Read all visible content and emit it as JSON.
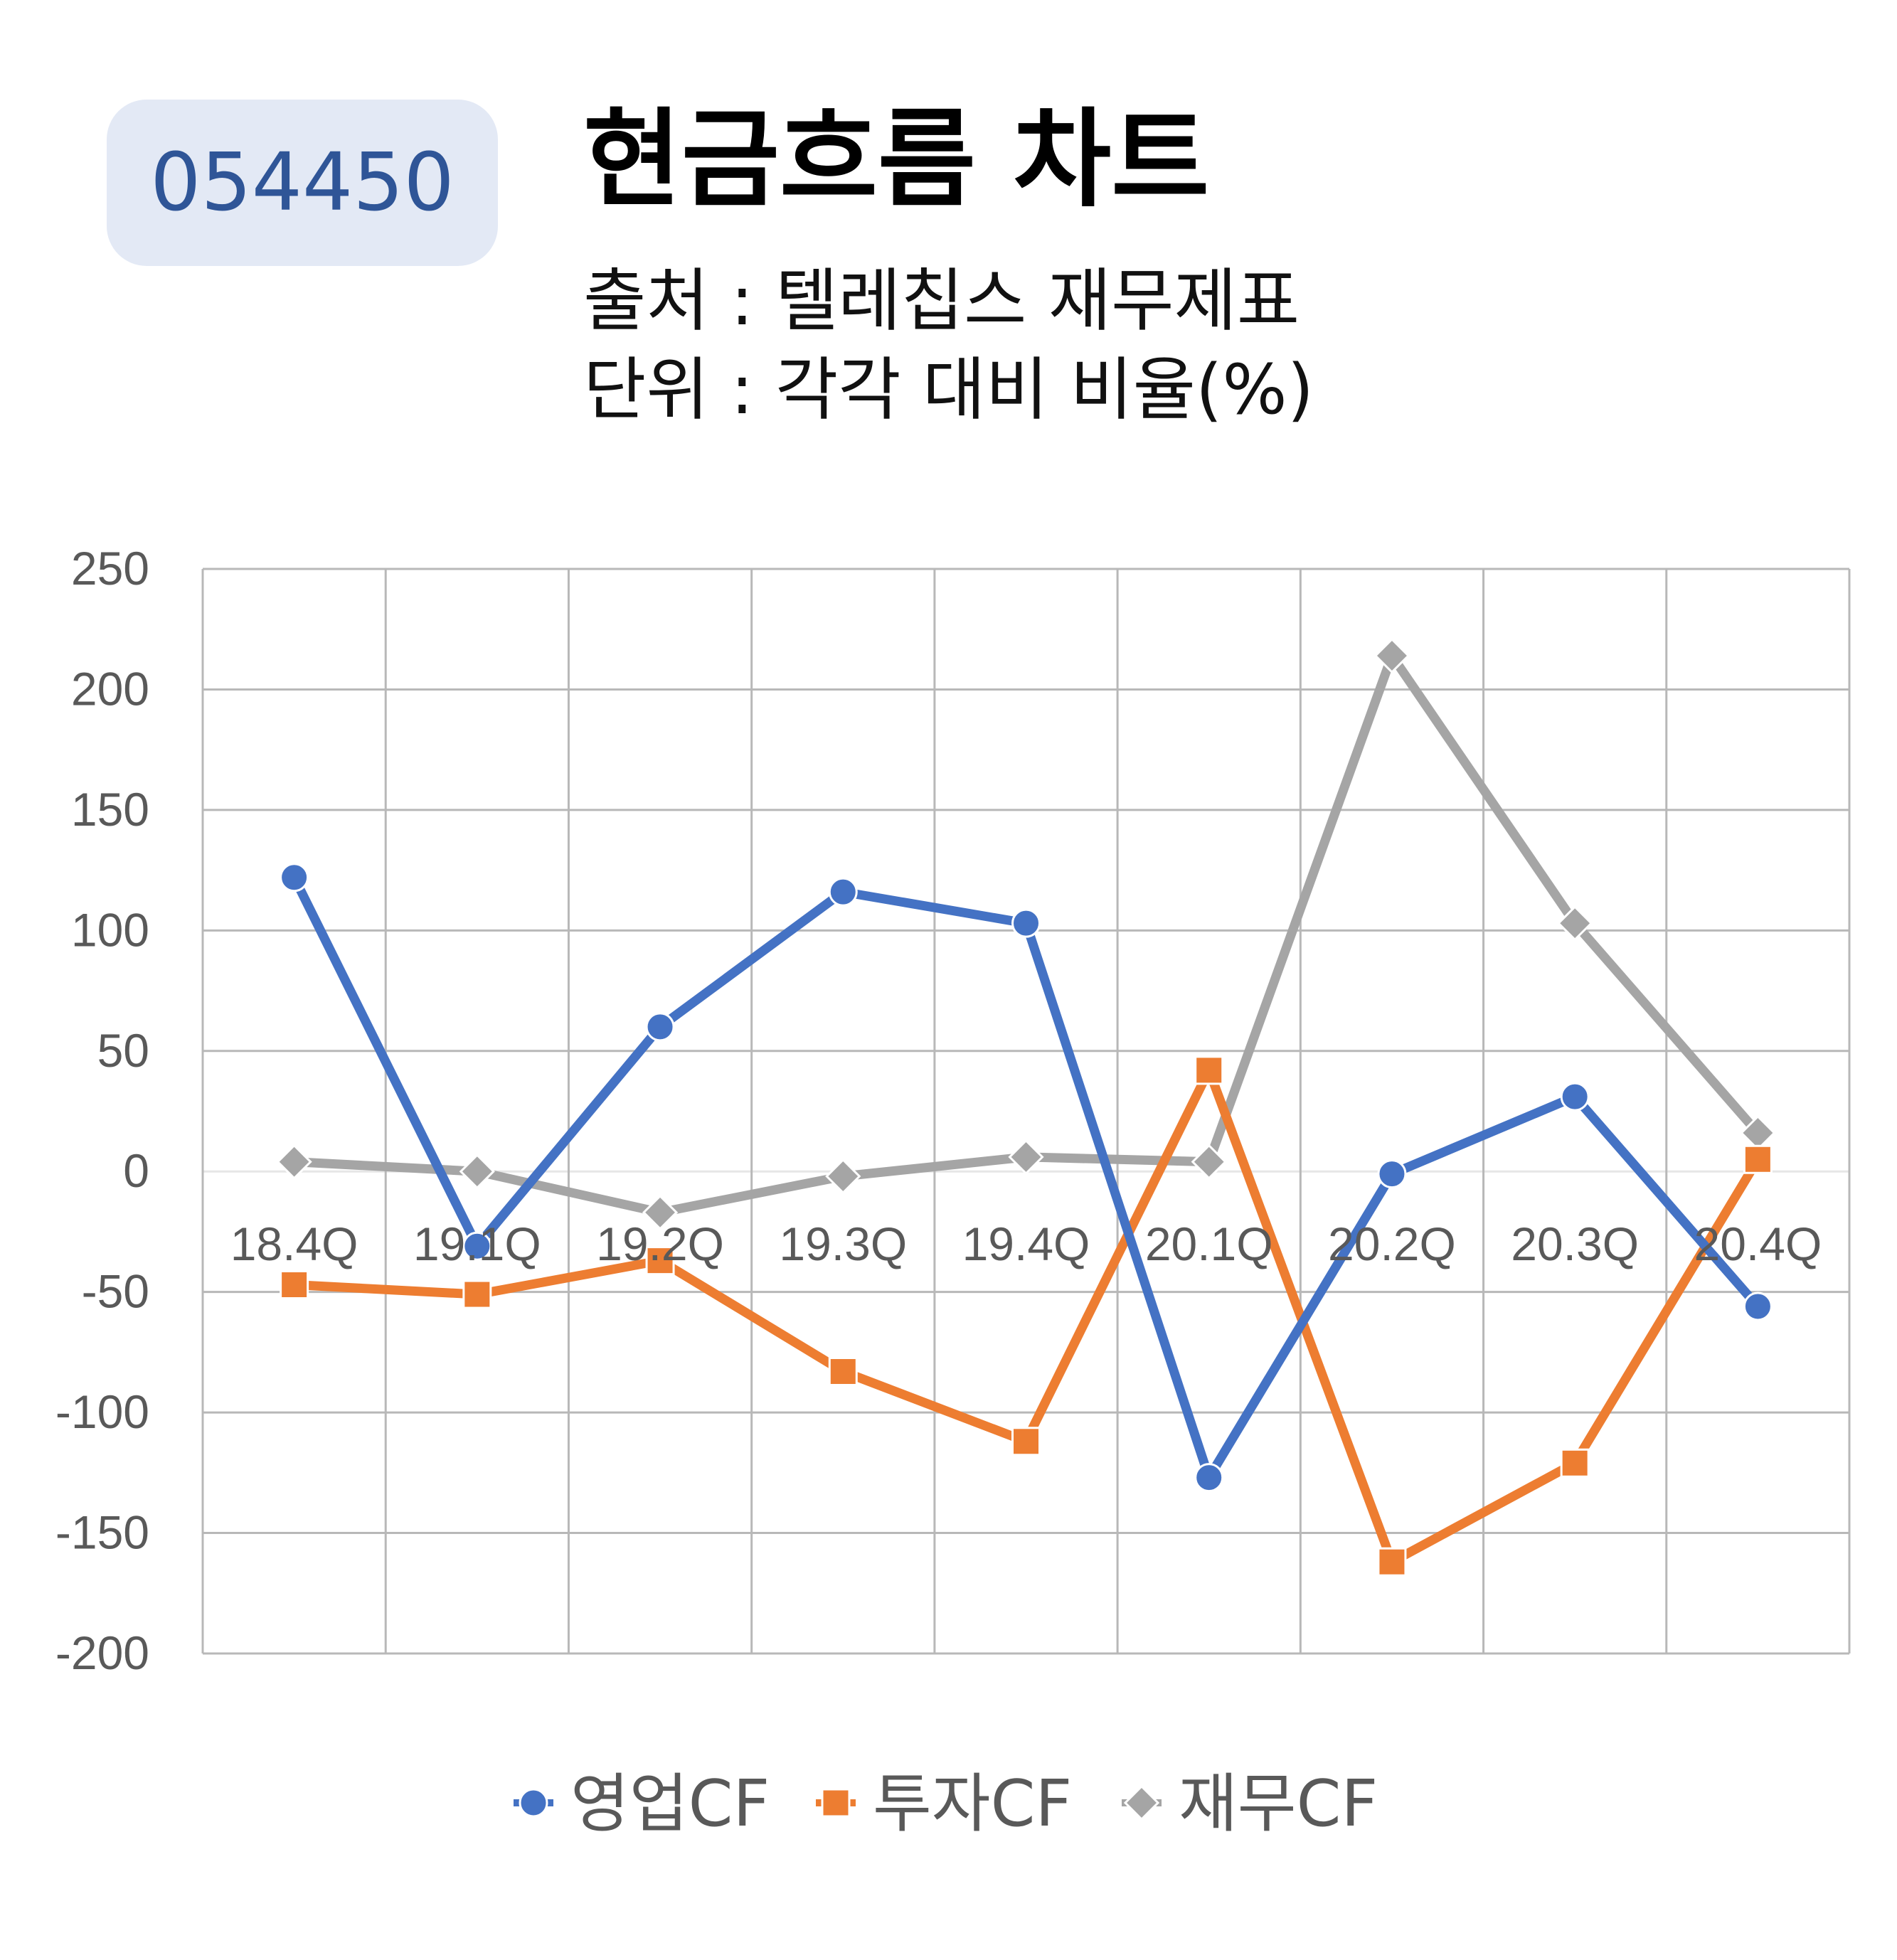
{
  "header": {
    "code": "054450",
    "title": "현금흐름 차트",
    "source": "출처 : 텔레칩스 재무제표",
    "unit": "단위 : 각각 대비 비율(%)"
  },
  "chart_data": {
    "type": "line",
    "categories": [
      "18.4Q",
      "19.1Q",
      "19.2Q",
      "19.3Q",
      "19.4Q",
      "20.1Q",
      "20.2Q",
      "20.3Q",
      "20.4Q"
    ],
    "ylim": [
      -200,
      250
    ],
    "yticks": [
      250,
      200,
      150,
      100,
      50,
      0,
      -50,
      -100,
      -150,
      -200
    ],
    "grid": true,
    "legend_position": "bottom",
    "series": [
      {
        "name": "영업CF",
        "color": "#4472c4",
        "marker": "circle",
        "values": [
          122,
          -31,
          60,
          116,
          103,
          -127,
          -1,
          31,
          -56
        ]
      },
      {
        "name": "투자CF",
        "color": "#ed7d31",
        "marker": "square",
        "values": [
          -47,
          -51,
          -37,
          -83,
          -112,
          42,
          -162,
          -121,
          5
        ]
      },
      {
        "name": "재무CF",
        "color": "#a5a5a5",
        "marker": "diamond",
        "values": [
          4,
          0,
          -17,
          -2,
          6,
          4,
          214,
          103,
          16
        ]
      }
    ]
  }
}
